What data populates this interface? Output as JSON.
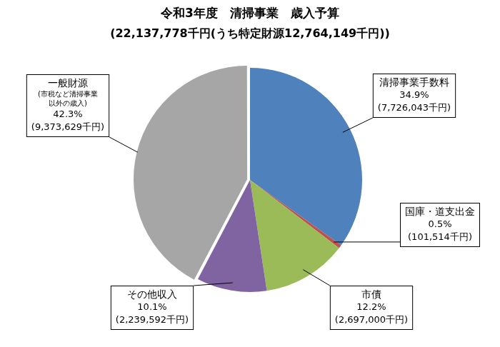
{
  "chart_data": {
    "type": "pie",
    "title": "令和3年度　清掃事業　歳入予算",
    "subtitle": "(22,137,778千円(うち特定財源12,764,149千円))",
    "categories": [
      "清掃事業手数料",
      "国庫・道支出金",
      "市債",
      "その他収入",
      "一般財源"
    ],
    "values": [
      34.9,
      0.5,
      12.2,
      10.1,
      42.3
    ],
    "value_labels": [
      "34.9%",
      "0.5%",
      "12.2%",
      "10.1%",
      "42.3%"
    ],
    "amount_labels": [
      "(7,726,043千円)",
      "(101,514千円)",
      "(2,697,000千円)",
      "(2,239,592千円)",
      "(9,373,629千円)"
    ],
    "colors": [
      "#4f81bd",
      "#c0504d",
      "#9bbb59",
      "#8064a2",
      "#a6a6a6"
    ],
    "annotations": [
      {
        "category": "一般財源",
        "text": "(市税など清掃事業以外の歳入)"
      }
    ],
    "data_labels": true
  }
}
